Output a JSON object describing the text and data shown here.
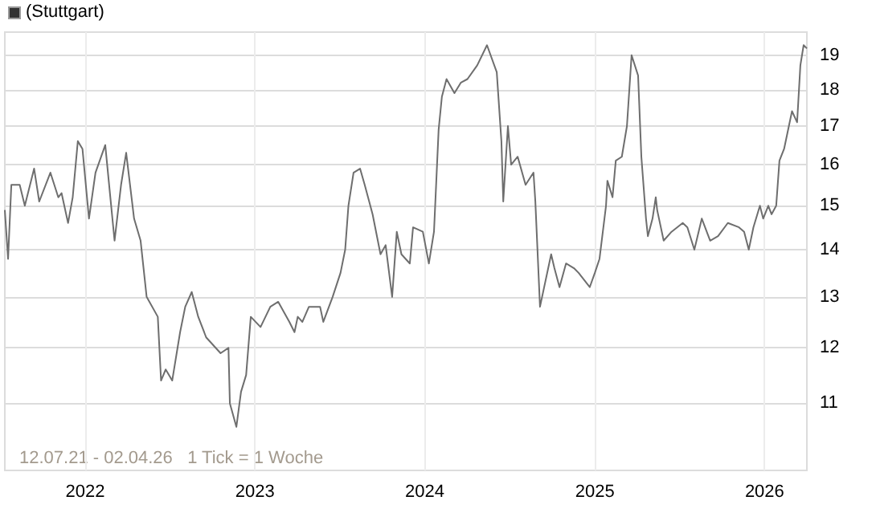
{
  "chart_data": {
    "type": "line",
    "title": "(Stuttgart)",
    "x": [
      "2021-07-12",
      "2021-07-19",
      "2021-07-26",
      "2021-08-13",
      "2021-08-24",
      "2021-09-13",
      "2021-09-24",
      "2021-10-18",
      "2021-11-04",
      "2021-11-11",
      "2021-11-25",
      "2021-12-05",
      "2021-12-16",
      "2021-12-26",
      "2022-01-09",
      "2022-01-23",
      "2022-02-13",
      "2022-03-05",
      "2022-03-19",
      "2022-03-30",
      "2022-04-16",
      "2022-04-30",
      "2022-05-13",
      "2022-06-06",
      "2022-06-13",
      "2022-06-23",
      "2022-07-07",
      "2022-07-24",
      "2022-08-04",
      "2022-08-18",
      "2022-09-01",
      "2022-09-18",
      "2022-10-19",
      "2022-11-05",
      "2022-11-08",
      "2022-11-22",
      "2022-12-02",
      "2022-12-13",
      "2022-12-23",
      "2023-01-13",
      "2023-02-03",
      "2023-02-20",
      "2023-03-16",
      "2023-03-27",
      "2023-04-03",
      "2023-04-13",
      "2023-04-27",
      "2023-05-21",
      "2023-05-28",
      "2023-06-17",
      "2023-07-04",
      "2023-07-14",
      "2023-07-21",
      "2023-08-01",
      "2023-08-15",
      "2023-08-25",
      "2023-09-11",
      "2023-09-28",
      "2023-10-09",
      "2023-10-23",
      "2023-11-02",
      "2023-11-12",
      "2023-11-30",
      "2023-12-07",
      "2023-12-28",
      "2024-01-10",
      "2024-01-21",
      "2024-01-31",
      "2024-02-07",
      "2024-02-17",
      "2024-03-05",
      "2024-03-19",
      "2024-04-02",
      "2024-04-23",
      "2024-05-14",
      "2024-06-04",
      "2024-06-14",
      "2024-06-18",
      "2024-06-28",
      "2024-07-05",
      "2024-07-19",
      "2024-08-05",
      "2024-08-22",
      "2024-08-26",
      "2024-09-05",
      "2024-09-29",
      "2024-10-06",
      "2024-10-17",
      "2024-10-31",
      "2024-11-17",
      "2024-11-27",
      "2024-12-21",
      "2025-01-01",
      "2025-01-11",
      "2025-01-25",
      "2025-01-28",
      "2025-02-08",
      "2025-02-15",
      "2025-02-28",
      "2025-03-11",
      "2025-03-21",
      "2025-04-04",
      "2025-04-11",
      "2025-04-21",
      "2025-04-25",
      "2025-05-05",
      "2025-05-12",
      "2025-05-15",
      "2025-05-29",
      "2025-06-15",
      "2025-07-09",
      "2025-07-19",
      "2025-08-03",
      "2025-08-19",
      "2025-09-06",
      "2025-09-23",
      "2025-10-14",
      "2025-11-07",
      "2025-11-18",
      "2025-11-28",
      "2025-12-08",
      "2025-12-22",
      "2025-12-29",
      "2026-01-09",
      "2026-01-16",
      "2026-01-26",
      "2026-02-02",
      "2026-02-12",
      "2026-03-01",
      "2026-03-12",
      "2026-03-19",
      "2026-03-26",
      "2026-04-02"
    ],
    "series": [
      {
        "color": "#6e6e6e",
        "values": [
          14.9,
          13.8,
          15.5,
          15.5,
          15.0,
          15.9,
          15.1,
          15.8,
          15.2,
          15.3,
          14.6,
          15.2,
          16.6,
          16.4,
          14.7,
          15.8,
          16.5,
          14.2,
          15.5,
          16.3,
          14.7,
          14.2,
          13.0,
          12.6,
          11.4,
          11.6,
          11.4,
          12.3,
          12.8,
          13.1,
          12.6,
          12.2,
          11.9,
          12.0,
          11.0,
          10.6,
          11.2,
          11.5,
          12.6,
          12.4,
          12.8,
          12.9,
          12.5,
          12.3,
          12.6,
          12.5,
          12.8,
          12.8,
          12.5,
          13.0,
          13.5,
          14.0,
          15.0,
          15.8,
          15.9,
          15.5,
          14.8,
          13.9,
          14.1,
          13.0,
          14.4,
          13.9,
          13.7,
          14.5,
          14.4,
          13.7,
          14.4,
          16.9,
          17.8,
          18.3,
          17.9,
          18.2,
          18.3,
          18.7,
          19.3,
          18.5,
          16.6,
          15.1,
          17.0,
          16.0,
          16.2,
          15.5,
          15.8,
          15.1,
          12.8,
          13.9,
          13.6,
          13.2,
          13.7,
          13.6,
          13.5,
          13.2,
          13.5,
          13.8,
          15.0,
          15.6,
          15.2,
          16.1,
          16.2,
          17.0,
          19.0,
          18.4,
          16.2,
          14.7,
          14.3,
          14.7,
          15.2,
          14.9,
          14.2,
          14.4,
          14.6,
          14.5,
          14.0,
          14.7,
          14.2,
          14.3,
          14.6,
          14.5,
          14.4,
          14.0,
          14.5,
          15.0,
          14.7,
          15.0,
          14.8,
          15.0,
          16.1,
          16.4,
          17.4,
          17.1,
          18.7,
          19.3,
          19.2
        ]
      }
    ],
    "xlim": [
      "2021-07-12",
      "2026-04-02"
    ],
    "xticks": [
      {
        "value": "2022-01-01",
        "label": "2022"
      },
      {
        "value": "2023-01-01",
        "label": "2023"
      },
      {
        "value": "2024-01-01",
        "label": "2024"
      },
      {
        "value": "2025-01-01",
        "label": "2025"
      },
      {
        "value": "2026-01-01",
        "label": "2026"
      }
    ],
    "ylim": [
      9.9,
      19.7
    ],
    "yticks": [
      11,
      12,
      13,
      14,
      15,
      16,
      17,
      18,
      19
    ],
    "log": "y",
    "grid": true,
    "annotations": [
      "12.07.21 - 02.04.26   1 Tick = 1 Woche"
    ]
  }
}
